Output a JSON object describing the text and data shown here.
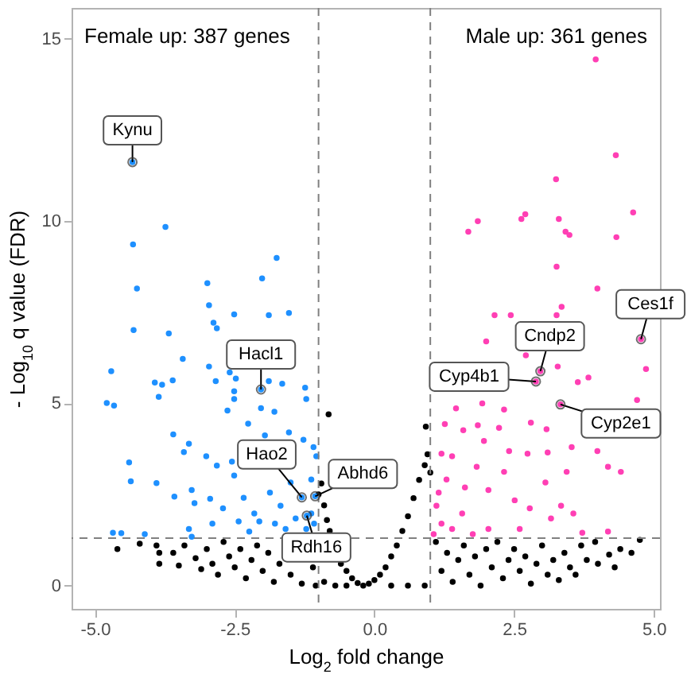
{
  "chart_data": {
    "type": "scatter",
    "xlabel": "Log$_{2}$ fold change",
    "ylabel": "- Log$_{10}$ q value (FDR)",
    "marker": "circle",
    "xlim": [
      -5.42,
      5.11
    ],
    "ylim": [
      -0.64,
      15.85
    ],
    "xticks": [
      {
        "value": -5,
        "label": "-5.0"
      },
      {
        "value": -2.5,
        "label": "-2.5"
      },
      {
        "value": 0,
        "label": "0.0"
      },
      {
        "value": 2.5,
        "label": "2.5"
      },
      {
        "value": 5,
        "label": "5.0"
      }
    ],
    "yticks": [
      0,
      5,
      10,
      15
    ],
    "ref_lines": [
      {
        "axis": "x",
        "value": -1,
        "color": "#808080",
        "line_style": "dashed"
      },
      {
        "axis": "x",
        "value": 1,
        "color": "#808080",
        "line_style": "dashed"
      },
      {
        "axis": "y",
        "value": 1.3,
        "color": "#808080",
        "line_style": "dashed"
      }
    ],
    "annotations": [
      "Female up: 387 genes",
      "Male up: 361 genes",
      {
        "text": "Kynu",
        "x": -4.33,
        "y": 11.62
      },
      {
        "text": "Hacl1",
        "x": -2.03,
        "y": 5.38
      },
      {
        "text": "Hao2",
        "x": -1.3,
        "y": 2.42
      },
      {
        "text": "Abhd6",
        "x": -1.06,
        "y": 2.45
      },
      {
        "text": "Rdh16",
        "x": -1.21,
        "y": 1.92
      },
      {
        "text": "Cndp2",
        "x": 2.97,
        "y": 5.88
      },
      {
        "text": "Cyp4b1",
        "x": 2.89,
        "y": 5.6
      },
      {
        "text": "Cyp2e1",
        "x": 3.33,
        "y": 4.97
      },
      {
        "text": "Ces1f",
        "x": 4.77,
        "y": 6.76
      }
    ],
    "series": [
      {
        "color": "#000000",
        "x": [
          -4.6,
          -4.2,
          -3.9,
          -3.85,
          -3.85,
          -3.6,
          -3.5,
          -3.4,
          -3.2,
          -3.1,
          -3.0,
          -2.9,
          -2.8,
          -2.7,
          -2.6,
          -2.5,
          -2.4,
          -2.3,
          -2.2,
          -2.1,
          -2.0,
          -1.9,
          -1.8,
          -1.7,
          -1.5,
          -1.3,
          -1.1,
          -1.05,
          -1.0,
          -0.95,
          -0.9,
          -0.85,
          -0.82,
          -0.8,
          -0.6,
          -0.5,
          -0.4,
          -0.3,
          -0.2,
          -0.1,
          -0.9,
          -0.7,
          -0.5,
          0.0,
          0.1,
          0.2,
          0.3,
          0.4,
          0.5,
          0.6,
          0.7,
          0.8,
          0.9,
          0.92,
          0.95,
          1.0,
          0.3,
          0.6,
          0.9,
          1.1,
          1.2,
          1.3,
          1.4,
          1.5,
          1.6,
          1.7,
          1.8,
          1.9,
          2.0,
          2.1,
          2.2,
          2.3,
          2.4,
          2.5,
          2.6,
          2.7,
          2.8,
          2.9,
          3.0,
          3.1,
          3.2,
          3.3,
          3.4,
          3.5,
          3.6,
          3.7,
          3.8,
          3.95,
          4.0,
          4.2,
          4.3,
          4.4,
          4.6,
          4.75
        ],
        "values": [
          1.0,
          1.15,
          1.1,
          0.6,
          0.9,
          0.9,
          0.55,
          1.1,
          0.75,
          0.45,
          1.0,
          0.6,
          0.3,
          1.2,
          0.8,
          0.5,
          1.0,
          0.2,
          0.7,
          1.1,
          0.4,
          0.9,
          0.1,
          0.6,
          0.3,
          0.05,
          0.5,
          0.0,
          2.5,
          2.8,
          2.2,
          1.8,
          4.7,
          1.5,
          0.6,
          0.4,
          0.2,
          0.07,
          0.0,
          0.05,
          0.1,
          0.0,
          0.0,
          0.15,
          0.3,
          0.5,
          0.8,
          1.1,
          1.5,
          1.9,
          2.4,
          2.9,
          3.3,
          4.36,
          3.6,
          3.1,
          0.0,
          0.0,
          0.0,
          1.2,
          0.4,
          0.9,
          0.1,
          0.7,
          1.1,
          0.3,
          0.8,
          0.0,
          1.0,
          0.5,
          1.2,
          0.2,
          0.7,
          1.0,
          0.4,
          0.8,
          0.05,
          0.6,
          1.1,
          0.3,
          0.7,
          0.15,
          0.9,
          0.5,
          0.3,
          1.1,
          0.7,
          1.2,
          0.6,
          0.85,
          0.5,
          1.0,
          0.9,
          1.25
        ]
      },
      {
        "color": "#1e90ff",
        "x": [
          -4.33,
          -2.03,
          -1.3,
          -1.06,
          -1.21,
          -4.32,
          -3.74,
          -4.25,
          -2.99,
          -2.96,
          -2.01,
          -1.75,
          -2.51,
          -1.89,
          -1.53,
          -4.31,
          -3.68,
          -2.88,
          -2.82,
          -3.43,
          -4.71,
          -4.79,
          -4.66,
          -3.93,
          -3.8,
          -3.86,
          -3.61,
          -2.96,
          -2.84,
          -2.59,
          -2.48,
          -2.51,
          -2.51,
          -1.89,
          -1.65,
          -1.24,
          -1.22,
          -2.03,
          -1.79,
          -2.63,
          -2.26,
          -3.6,
          -3.32,
          -3.41,
          -4.39,
          -4.36,
          -3.9,
          -3.58,
          -3.01,
          -2.82,
          -2.55,
          -2.51,
          -1.96,
          -1.53,
          -1.27,
          -1.09,
          -1.04,
          -3.27,
          -3.22,
          -2.94,
          -2.71,
          -2.34,
          -2.15,
          -1.87,
          -1.68,
          -1.5,
          -1.13,
          -1.41,
          -1.78,
          -2.06,
          -2.43,
          -2.9,
          -3.32,
          -4.11,
          -4.68,
          -4.53,
          -3.27,
          -1.08,
          -1.13,
          -1.59,
          -2.24,
          -1.22
        ],
        "values": [
          11.62,
          5.38,
          2.42,
          2.45,
          1.92,
          9.36,
          9.84,
          8.15,
          8.3,
          7.69,
          8.43,
          8.99,
          7.44,
          7.42,
          7.48,
          7.01,
          6.92,
          7.21,
          7.06,
          6.22,
          5.88,
          5.01,
          4.94,
          5.57,
          5.51,
          5.18,
          5.63,
          6.01,
          5.61,
          5.85,
          5.68,
          5.33,
          5.12,
          5.61,
          5.54,
          5.43,
          5.12,
          4.87,
          4.77,
          4.8,
          4.44,
          4.15,
          3.89,
          3.66,
          3.38,
          2.86,
          2.81,
          2.44,
          3.55,
          3.29,
          3.4,
          3.02,
          4.12,
          4.2,
          4.0,
          3.8,
          3.55,
          2.62,
          2.26,
          2.38,
          2.12,
          2.41,
          1.98,
          2.55,
          2.19,
          2.83,
          2.91,
          1.84,
          1.7,
          1.76,
          1.76,
          1.7,
          1.55,
          1.41,
          1.45,
          1.44,
          1.34,
          1.7,
          1.98,
          1.55,
          1.48,
          1.55
        ]
      },
      {
        "color": "#ff3fb4",
        "x": [
          2.97,
          2.89,
          3.33,
          4.77,
          3.96,
          4.32,
          3.25,
          4.63,
          1.68,
          1.85,
          2.63,
          2.7,
          3.3,
          3.42,
          3.49,
          4.33,
          3.26,
          3.99,
          3.35,
          2.15,
          2.44,
          3.26,
          2.0,
          2.71,
          3.28,
          4.86,
          3.83,
          3.64,
          4.7,
          1.46,
          1.93,
          2.32,
          1.26,
          1.59,
          1.85,
          2.23,
          2.8,
          3.08,
          1.96,
          1.39,
          1.2,
          2.41,
          2.74,
          3.1,
          3.53,
          3.99,
          4.18,
          4.41,
          1.83,
          2.32,
          3.44,
          3.06,
          2.04,
          1.15,
          2.51,
          3.34,
          3.56,
          3.16,
          2.78,
          1.57,
          1.2,
          2.04,
          3.72,
          4.18,
          1.76,
          1.06,
          1.39,
          2.6,
          1.11,
          1.29,
          1.62
        ],
        "values": [
          5.88,
          5.6,
          4.97,
          6.76,
          14.44,
          11.81,
          11.15,
          10.24,
          9.71,
          10.0,
          10.06,
          10.19,
          10.06,
          9.71,
          9.62,
          9.56,
          8.75,
          8.15,
          7.65,
          7.42,
          7.42,
          7.42,
          6.7,
          6.32,
          6.01,
          5.94,
          5.71,
          5.58,
          5.09,
          4.86,
          5.0,
          4.83,
          4.43,
          4.26,
          4.4,
          4.33,
          4.47,
          4.29,
          3.97,
          3.55,
          3.62,
          3.69,
          3.62,
          3.65,
          3.8,
          3.69,
          3.26,
          3.12,
          3.26,
          3.12,
          3.12,
          2.83,
          2.62,
          2.55,
          2.34,
          2.19,
          1.98,
          1.84,
          2.12,
          1.98,
          1.7,
          1.55,
          1.45,
          1.48,
          1.41,
          1.41,
          1.55,
          1.55,
          2.19,
          2.91,
          2.69
        ]
      }
    ]
  }
}
